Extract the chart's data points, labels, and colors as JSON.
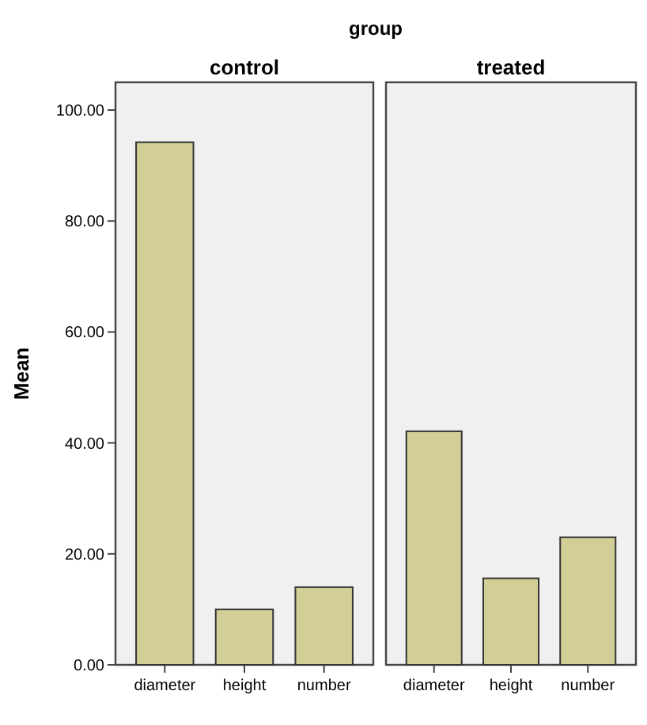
{
  "chart_data": [
    {
      "type": "bar",
      "title": "control",
      "annotations": [
        "group"
      ],
      "ylabel": "Mean",
      "categories": [
        "diameter",
        "height",
        "number"
      ],
      "values": [
        94.2,
        10,
        14
      ],
      "color": "#d2cf96",
      "ylim": [
        0,
        105
      ],
      "yticks": [
        {
          "value": 0,
          "label": "0.00"
        },
        {
          "value": 20,
          "label": "20.00"
        },
        {
          "value": 40,
          "label": "40.00"
        },
        {
          "value": 60,
          "label": "60.00"
        },
        {
          "value": 80,
          "label": "80.00"
        },
        {
          "value": 100,
          "label": "100.00"
        }
      ],
      "grid": false
    },
    {
      "type": "bar",
      "title": "treated",
      "categories": [
        "diameter",
        "height",
        "number"
      ],
      "values": [
        42.1,
        15.6,
        23
      ],
      "color": "#d2cf96",
      "ylim": [
        0,
        105
      ],
      "tick_labels": "x",
      "grid": false
    }
  ]
}
